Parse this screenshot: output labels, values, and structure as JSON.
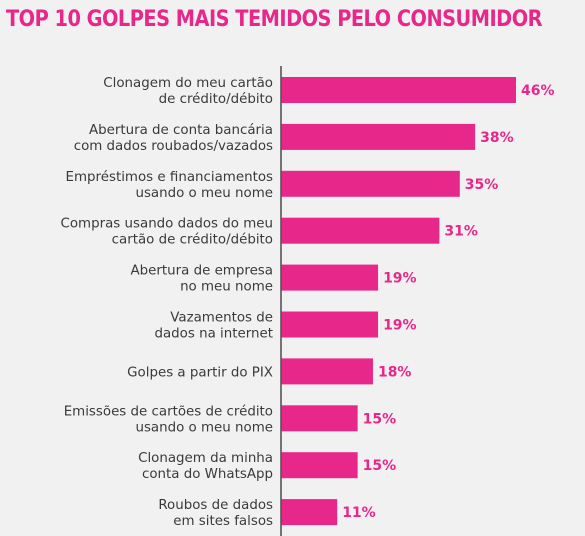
{
  "colors": {
    "accent": "#e8278a",
    "text": "#3a3a3a",
    "axis": "#555555",
    "background": "#f2f1f1"
  },
  "chart_data": {
    "type": "bar",
    "orientation": "horizontal",
    "title": "TOP 10 GOLPES MAIS TEMIDOS PELO CONSUMIDOR",
    "categories": [
      [
        "Clonagem do meu cartão",
        "de crédito/débito"
      ],
      [
        "Abertura de conta bancária",
        "com dados roubados/vazados"
      ],
      [
        "Empréstimos e financiamentos",
        "usando o meu nome"
      ],
      [
        "Compras usando dados do meu",
        "cartão de crédito/débito"
      ],
      [
        "Abertura de empresa",
        "no meu nome"
      ],
      [
        "Vazamentos de",
        "dados na internet"
      ],
      [
        "Golpes a partir do PIX"
      ],
      [
        "Emissões de cartões de crédito",
        "usando o meu nome"
      ],
      [
        "Clonagem da minha",
        "conta do WhatsApp"
      ],
      [
        "Roubos de dados",
        "em sites falsos"
      ]
    ],
    "values": [
      46,
      38,
      35,
      31,
      19,
      19,
      18,
      15,
      15,
      11
    ],
    "value_labels": [
      "46%",
      "38%",
      "35%",
      "31%",
      "19%",
      "19%",
      "18%",
      "15%",
      "15%",
      "11%"
    ],
    "xlim": [
      0,
      46
    ],
    "grid": false,
    "legend": "none"
  }
}
